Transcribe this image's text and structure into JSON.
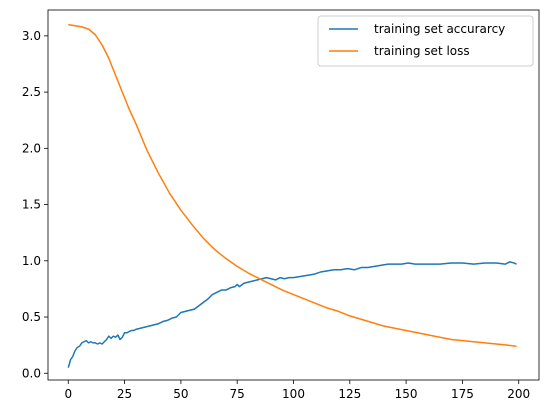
{
  "chart_data": {
    "type": "line",
    "xlim": [
      -9,
      209
    ],
    "ylim": [
      -0.06,
      3.23
    ],
    "xticks": [
      0,
      25,
      50,
      75,
      100,
      125,
      150,
      175,
      200
    ],
    "yticks": [
      0.0,
      0.5,
      1.0,
      1.5,
      2.0,
      2.5,
      3.0
    ],
    "xtick_labels": [
      "0",
      "25",
      "50",
      "75",
      "100",
      "125",
      "150",
      "175",
      "200"
    ],
    "ytick_labels": [
      "0.0",
      "0.5",
      "1.0",
      "1.5",
      "2.0",
      "2.5",
      "3.0"
    ],
    "grid": false,
    "legend_position": "top-right",
    "series": [
      {
        "name": "training set accurarcy",
        "color": "#1f77b4",
        "x": [
          0,
          1,
          2,
          3,
          4,
          5,
          6,
          7,
          8,
          9,
          10,
          11,
          12,
          13,
          14,
          15,
          16,
          17,
          18,
          19,
          20,
          21,
          22,
          23,
          24,
          25,
          26,
          27,
          28,
          29,
          30,
          32,
          34,
          36,
          38,
          40,
          42,
          44,
          46,
          48,
          50,
          52,
          54,
          56,
          58,
          60,
          62,
          64,
          66,
          68,
          70,
          72,
          74,
          75,
          76,
          78,
          80,
          82,
          84,
          86,
          88,
          90,
          92,
          94,
          96,
          98,
          100,
          103,
          106,
          109,
          112,
          115,
          118,
          121,
          124,
          127,
          130,
          133,
          136,
          139,
          142,
          145,
          148,
          151,
          154,
          157,
          160,
          165,
          170,
          175,
          180,
          185,
          190,
          194,
          196,
          198,
          199
        ],
        "y": [
          0.05,
          0.12,
          0.15,
          0.2,
          0.23,
          0.24,
          0.27,
          0.28,
          0.29,
          0.27,
          0.28,
          0.27,
          0.27,
          0.26,
          0.27,
          0.26,
          0.28,
          0.3,
          0.33,
          0.31,
          0.33,
          0.32,
          0.34,
          0.3,
          0.32,
          0.36,
          0.36,
          0.37,
          0.38,
          0.38,
          0.39,
          0.4,
          0.41,
          0.42,
          0.43,
          0.44,
          0.46,
          0.47,
          0.49,
          0.5,
          0.54,
          0.55,
          0.56,
          0.57,
          0.6,
          0.63,
          0.66,
          0.7,
          0.72,
          0.74,
          0.74,
          0.76,
          0.77,
          0.79,
          0.77,
          0.8,
          0.81,
          0.82,
          0.83,
          0.84,
          0.85,
          0.84,
          0.83,
          0.85,
          0.84,
          0.85,
          0.85,
          0.86,
          0.87,
          0.88,
          0.9,
          0.91,
          0.92,
          0.92,
          0.93,
          0.92,
          0.94,
          0.94,
          0.95,
          0.96,
          0.97,
          0.97,
          0.97,
          0.98,
          0.97,
          0.97,
          0.97,
          0.97,
          0.98,
          0.98,
          0.97,
          0.98,
          0.98,
          0.97,
          0.99,
          0.98,
          0.97
        ]
      },
      {
        "name": "training set loss",
        "color": "#ff7f0e",
        "x": [
          0,
          3,
          6,
          9,
          12,
          15,
          18,
          21,
          24,
          27,
          30,
          35,
          40,
          45,
          50,
          55,
          60,
          65,
          70,
          75,
          80,
          85,
          90,
          95,
          100,
          105,
          110,
          115,
          120,
          125,
          130,
          135,
          140,
          145,
          150,
          155,
          160,
          165,
          170,
          175,
          180,
          185,
          190,
          195,
          199
        ],
        "y": [
          3.1,
          3.09,
          3.08,
          3.06,
          3.01,
          2.92,
          2.8,
          2.65,
          2.5,
          2.35,
          2.22,
          1.98,
          1.78,
          1.6,
          1.45,
          1.32,
          1.2,
          1.1,
          1.02,
          0.95,
          0.89,
          0.84,
          0.79,
          0.74,
          0.7,
          0.66,
          0.62,
          0.58,
          0.55,
          0.51,
          0.48,
          0.45,
          0.42,
          0.4,
          0.38,
          0.36,
          0.34,
          0.32,
          0.3,
          0.29,
          0.28,
          0.27,
          0.26,
          0.25,
          0.24
        ]
      }
    ]
  }
}
